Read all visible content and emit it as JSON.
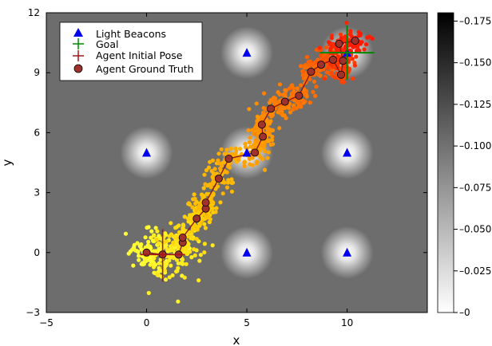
{
  "chart_data": {
    "type": "scatter",
    "title": "",
    "xlabel": "x",
    "ylabel": "y",
    "xlim": [
      -5,
      14
    ],
    "ylim": [
      -3,
      12
    ],
    "xticks": [
      -5,
      0,
      5,
      10
    ],
    "yticks": [
      -3,
      0,
      3,
      6,
      9,
      12
    ],
    "grid": false,
    "legend": {
      "placement": "top-left",
      "entries": [
        "Light Beacons",
        "Goal",
        "Agent Initial Pose",
        "Agent Ground Truth"
      ]
    },
    "beacons": [
      [
        0,
        5
      ],
      [
        5,
        10
      ],
      [
        5,
        5
      ],
      [
        10,
        5
      ],
      [
        5,
        0
      ],
      [
        10,
        0
      ],
      [
        10,
        10
      ]
    ],
    "goal": [
      10,
      10
    ],
    "initial_pose": [
      0.8,
      -0.1
    ],
    "ground_truth": [
      [
        0,
        0
      ],
      [
        0.8,
        -0.1
      ],
      [
        1.6,
        -0.1
      ],
      [
        1.8,
        0.5
      ],
      [
        1.8,
        0.75
      ],
      [
        2.5,
        1.7
      ],
      [
        2.95,
        2.2
      ],
      [
        2.95,
        2.5
      ],
      [
        3.6,
        3.7
      ],
      [
        4.1,
        4.7
      ],
      [
        5.4,
        5.0
      ],
      [
        5.8,
        5.8
      ],
      [
        5.75,
        6.4
      ],
      [
        6.2,
        7.2
      ],
      [
        6.9,
        7.55
      ],
      [
        7.6,
        7.85
      ],
      [
        8.2,
        9.05
      ],
      [
        8.7,
        9.4
      ],
      [
        9.3,
        9.65
      ],
      [
        9.7,
        8.9
      ],
      [
        9.8,
        9.6
      ],
      [
        9.6,
        10.45
      ],
      [
        10.4,
        10.6
      ]
    ],
    "colorbar": {
      "range": [
        0,
        0.18
      ],
      "ticks": [
        0,
        0.025,
        0.05,
        0.075,
        0.1,
        0.125,
        0.15,
        0.175
      ],
      "tick_labels": [
        "0",
        "0.025",
        "0.050",
        "0.075",
        "0.100",
        "0.125",
        "0.150",
        "0.175"
      ],
      "colormap": "white-to-black"
    },
    "particle_color_gradient": [
      "#ffff33",
      "#ffcc00",
      "#ff9900",
      "#ff6600",
      "#ff1a00"
    ]
  }
}
